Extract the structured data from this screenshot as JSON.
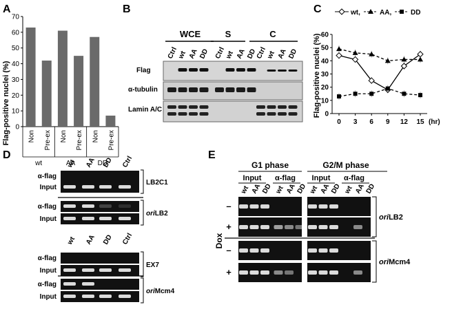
{
  "panels": {
    "A": "A",
    "B": "B",
    "C": "C",
    "D": "D",
    "E": "E"
  },
  "chart_data": [
    {
      "type": "bar",
      "panel": "A",
      "ylabel": "Flag-positive nuclei (%)",
      "ylim": [
        0,
        70
      ],
      "yticks": [
        "0",
        "10",
        "20",
        "30",
        "40",
        "50",
        "60",
        "70"
      ],
      "categories": [
        "Non",
        "Pre-ex",
        "Non",
        "Pre-ex",
        "Non",
        "Pre-ex"
      ],
      "groups": [
        "wt",
        "AA",
        "DD"
      ],
      "values": [
        63,
        42,
        61,
        45,
        57,
        7
      ],
      "bar_color": "#6a6a6a"
    },
    {
      "type": "line",
      "panel": "C",
      "ylabel": "Flag-positive nuclei (%)",
      "xlabel_unit": "(hr)",
      "x": [
        0,
        3,
        6,
        9,
        12,
        15
      ],
      "ylim": [
        0,
        60
      ],
      "yticks": [
        "0",
        "10",
        "20",
        "30",
        "40",
        "50",
        "60"
      ],
      "series": [
        {
          "name": "wt",
          "marker": "diamond-open",
          "line": "solid",
          "values": [
            44,
            41,
            25,
            18,
            36,
            45
          ]
        },
        {
          "name": "AA",
          "marker": "triangle",
          "line": "dashed",
          "values": [
            49,
            46,
            45,
            40,
            41,
            41
          ]
        },
        {
          "name": "DD",
          "marker": "square",
          "line": "dashed",
          "values": [
            13,
            15,
            15,
            19,
            15,
            14
          ]
        }
      ],
      "legend": {
        "wt": "wt,",
        "AA": "AA,",
        "DD": "DD"
      }
    }
  ],
  "blotB": {
    "groups": [
      "WCE",
      "S",
      "C"
    ],
    "lanes": [
      "Ctrl",
      "wt",
      "AA",
      "DD"
    ],
    "rows": [
      "Flag",
      "α-tubulin",
      "Lamin A/C"
    ]
  },
  "gelD": {
    "lanes": [
      "wt",
      "AA",
      "DD",
      "Ctrl"
    ],
    "rows": [
      "α-flag",
      "Input",
      "α-flag",
      "Input",
      "α-flag",
      "Input",
      "α-flag",
      "Input"
    ],
    "loci": [
      "LB2C1",
      "ori",
      "LB2",
      "EX7",
      "ori",
      "Mcm4"
    ]
  },
  "gelE": {
    "phases": [
      "G1 phase",
      "G2/M phase"
    ],
    "sub": [
      "Input",
      "α-flag"
    ],
    "lanes": [
      "wt",
      "AA",
      "DD"
    ],
    "dox": "Dox",
    "signs": [
      "–",
      "+",
      "–",
      "+"
    ],
    "loci": [
      "ori",
      "LB2",
      "ori",
      "Mcm4"
    ]
  }
}
